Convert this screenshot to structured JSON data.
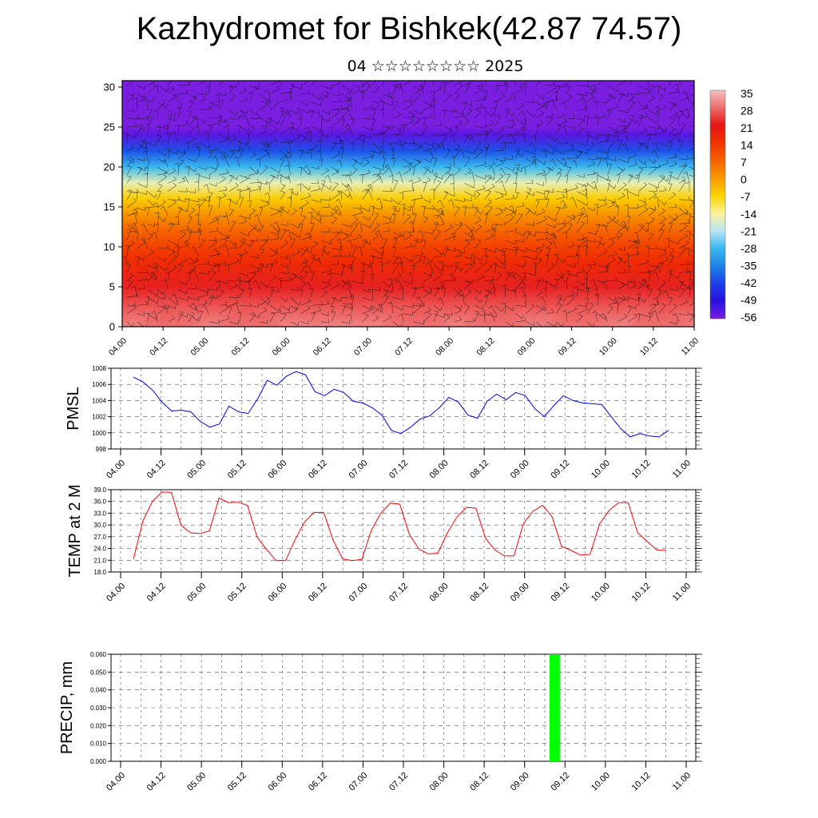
{
  "title": "Kazhydromet for Bishkek(42.87 74.57)",
  "subtitle": "04 ☆☆☆☆☆☆☆☆ 2025",
  "chart_data": [
    {
      "id": "cross-section",
      "type": "heatmap",
      "description_of_field": "temperature color fill with wind barbs",
      "x_ticks": [
        "04.00",
        "04.12",
        "05.00",
        "05.12",
        "06.00",
        "06.12",
        "07.00",
        "07.12",
        "08.00",
        "08.12",
        "09.00",
        "09.12",
        "10.00",
        "10.12",
        "11.00"
      ],
      "y_ticks": [
        0,
        5,
        10,
        15,
        20,
        25,
        30
      ],
      "ylim": [
        0,
        30.8
      ],
      "temperature_levels": [
        {
          "level": 0,
          "temp": 30
        },
        {
          "level": 2,
          "temp": 27
        },
        {
          "level": 5,
          "temp": 22
        },
        {
          "level": 8,
          "temp": 16
        },
        {
          "level": 10,
          "temp": 12
        },
        {
          "level": 12,
          "temp": 7
        },
        {
          "level": 14,
          "temp": 1
        },
        {
          "level": 16,
          "temp": -6
        },
        {
          "level": 18,
          "temp": -16
        },
        {
          "level": 20,
          "temp": -28
        },
        {
          "level": 22,
          "temp": -40
        },
        {
          "level": 24,
          "temp": -53
        },
        {
          "level": 25,
          "temp": -60
        },
        {
          "level": 27,
          "temp": -58
        },
        {
          "level": 30.8,
          "temp": -56
        }
      ],
      "colorbar_labels": [
        "35",
        "28",
        "21",
        "14",
        "7",
        "0",
        "-7",
        "-14",
        "-21",
        "-28",
        "-35",
        "-42",
        "-49",
        "-56"
      ],
      "colorbar_colors": [
        "#f4c2c2",
        "#ee6b6b",
        "#e51515",
        "#f23300",
        "#f56400",
        "#f79a00",
        "#fbd400",
        "#fdf39a",
        "#b7e6f5",
        "#3ab8ee",
        "#1c83e6",
        "#1e3ee8",
        "#2a10e0",
        "#7a1ee0"
      ]
    },
    {
      "id": "pmsl",
      "type": "line",
      "ylabel": "PMSL",
      "ylim": [
        998,
        1008
      ],
      "y_ticks": [
        "1008",
        "1006",
        "1004",
        "1002",
        "1000",
        "998"
      ],
      "x_ticks": [
        "04.00",
        "04.12",
        "05.00",
        "05.12",
        "06.00",
        "06.12",
        "07.00",
        "07.12",
        "08.00",
        "08.12",
        "09.00",
        "09.12",
        "10.00",
        "10.12",
        "11.00"
      ],
      "color": "#0000ff",
      "series": [
        {
          "x": [
            0,
            1,
            2,
            3,
            4,
            5,
            6,
            7,
            8,
            9,
            10,
            11,
            12,
            13,
            14,
            15,
            16,
            17,
            18,
            19,
            20,
            21,
            22,
            23,
            24,
            25,
            26,
            27,
            28,
            29,
            30,
            31,
            32,
            33,
            34,
            35,
            36,
            37,
            38,
            39,
            40,
            41,
            42,
            43,
            44,
            45,
            46,
            47,
            48,
            49,
            50,
            51,
            52,
            53,
            54,
            55,
            56
          ],
          "values": [
            1006.9,
            1006.3,
            1005.3,
            1003.8,
            1002.7,
            1002.8,
            1002.6,
            1001.4,
            1000.7,
            1001.1,
            1003.3,
            1002.6,
            1002.4,
            1004.2,
            1006.5,
            1005.9,
            1007.0,
            1007.6,
            1007.2,
            1005.1,
            1004.6,
            1005.4,
            1005.0,
            1003.9,
            1003.7,
            1003.1,
            1002.2,
            1000.3,
            999.9,
            1000.7,
            1001.7,
            1002.1,
            1003.1,
            1004.4,
            1003.8,
            1002.2,
            1001.8,
            1003.9,
            1004.8,
            1004.1,
            1005.0,
            1004.6,
            1003.0,
            1002.0,
            1003.4,
            1004.6,
            1004.0,
            1003.7,
            1003.6,
            1003.5,
            1002.0,
            1000.5,
            999.5,
            999.9,
            999.6,
            999.5,
            1000.3
          ]
        }
      ]
    },
    {
      "id": "temp",
      "type": "line",
      "ylabel": "TEMP at 2 M",
      "ylim": [
        18,
        39
      ],
      "y_ticks": [
        "39.0",
        "36.0",
        "33.0",
        "30.0",
        "27.0",
        "24.0",
        "21.0",
        "18.0"
      ],
      "x_ticks": [
        "04.00",
        "04.12",
        "05.00",
        "05.12",
        "06.00",
        "06.12",
        "07.00",
        "07.12",
        "08.00",
        "08.12",
        "09.00",
        "09.12",
        "10.00",
        "10.12",
        "11.00"
      ],
      "color": "#ff0000",
      "series": [
        {
          "x": [
            0,
            2,
            4,
            6,
            8,
            10,
            12,
            14,
            16,
            18,
            20,
            22,
            24,
            26,
            28,
            30,
            32,
            34,
            36,
            38,
            40,
            42,
            44,
            46,
            48,
            50,
            52,
            54,
            56,
            58,
            60,
            62,
            64,
            66,
            68,
            70,
            72,
            74,
            76,
            78,
            80,
            82,
            84,
            86,
            88,
            90,
            92,
            94,
            96,
            98,
            100,
            102,
            104,
            106,
            108,
            110,
            112
          ],
          "values": [
            21.2,
            31.0,
            36.0,
            38.4,
            38.3,
            29.9,
            28.0,
            27.8,
            28.5,
            36.9,
            35.7,
            35.8,
            35.0,
            26.9,
            23.7,
            20.9,
            20.9,
            26.3,
            30.8,
            33.2,
            33.2,
            26.1,
            21.3,
            20.9,
            21.2,
            28.6,
            33.0,
            35.6,
            35.3,
            27.6,
            23.9,
            22.6,
            22.8,
            28.0,
            32.0,
            34.5,
            34.3,
            26.6,
            23.6,
            22.1,
            22.1,
            30.4,
            33.5,
            35.0,
            32.1,
            24.5,
            23.5,
            22.3,
            22.5,
            30.3,
            33.7,
            35.7,
            35.7,
            28.0,
            25.8,
            23.6,
            23.5
          ]
        }
      ]
    },
    {
      "id": "precip",
      "type": "bar",
      "ylabel": "PRECIP, mm",
      "ylim": [
        0,
        0.06
      ],
      "y_ticks": [
        "0.060",
        "0.050",
        "0.040",
        "0.030",
        "0.020",
        "0.010",
        "0.000"
      ],
      "x_ticks": [
        "04.00",
        "04.12",
        "05.00",
        "05.12",
        "06.00",
        "06.12",
        "07.00",
        "07.12",
        "08.00",
        "08.12",
        "09.00",
        "09.12",
        "10.00",
        "10.12",
        "11.00"
      ],
      "color": "#00ff00",
      "bars": [
        {
          "x_hours": 129,
          "value": 0.06
        }
      ]
    }
  ]
}
